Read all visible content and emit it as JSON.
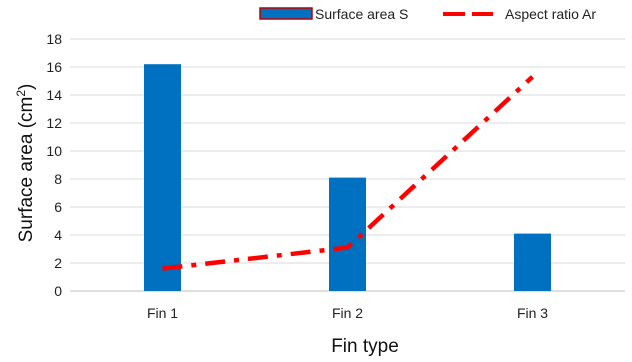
{
  "chart_data": {
    "type": "bar",
    "categories": [
      "Fin 1",
      "Fin 2",
      "Fin 3"
    ],
    "series": [
      {
        "name": "Surface area S",
        "type": "bar",
        "values": [
          16.2,
          8.1,
          4.1
        ],
        "color": "#0070C0",
        "edge_color": "#C00000"
      },
      {
        "name": "Aspect ratio Ar",
        "type": "line",
        "style": "dash-dot",
        "values": [
          1.6,
          3.1,
          15.3
        ],
        "color": "#FF0000"
      }
    ],
    "xlabel": "Fin type",
    "ylabel_main": "Surface area (cm",
    "ylabel_sup": "2",
    "ylabel_close": ")",
    "ylim": [
      0,
      18
    ],
    "yticks": [
      "0",
      "2",
      "4",
      "6",
      "8",
      "10",
      "12",
      "14",
      "16",
      "18"
    ],
    "grid": true,
    "legend_position": "top-right"
  }
}
